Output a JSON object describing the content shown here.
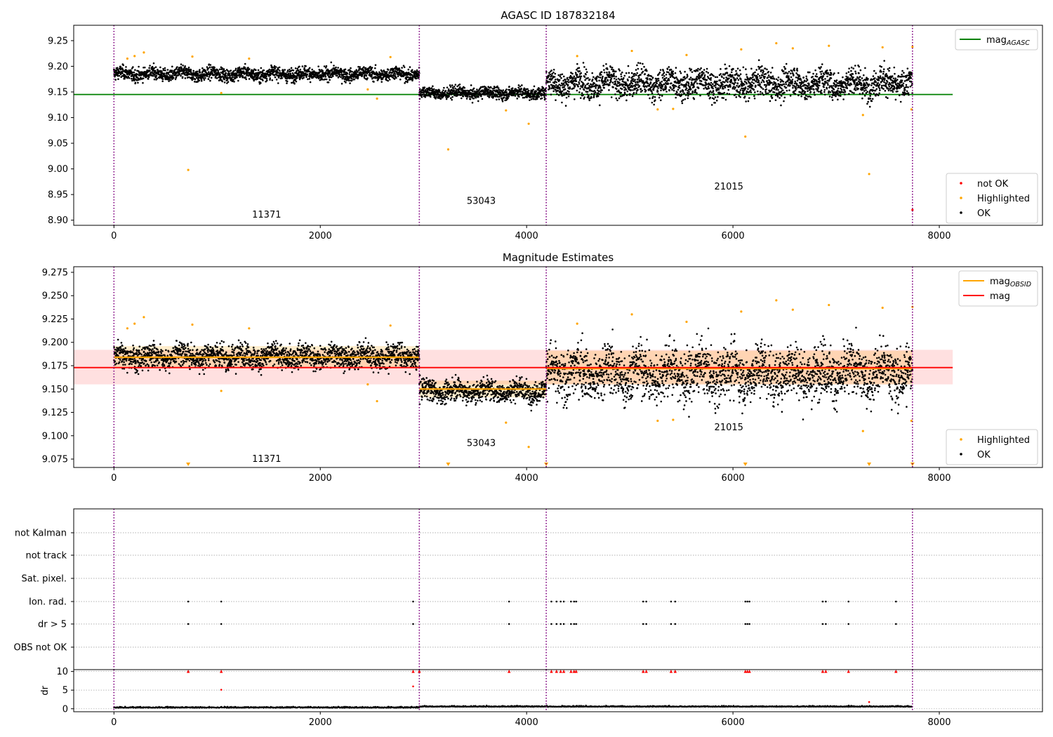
{
  "chart_data": [
    {
      "id": "agasc",
      "type": "scatter",
      "title": "AGASC ID 187832184",
      "xlim": [
        -390,
        9000
      ],
      "ylim": [
        8.89,
        9.28
      ],
      "xticks": [
        0,
        2000,
        4000,
        6000,
        8000
      ],
      "yticks": [
        8.9,
        8.95,
        9.0,
        9.05,
        9.1,
        9.15,
        9.2,
        9.25
      ],
      "ytick_labels": [
        "8.90",
        "8.95",
        "9.00",
        "9.05",
        "9.10",
        "9.15",
        "9.20",
        "9.25"
      ],
      "obs_boundaries": [
        0,
        2960,
        4190,
        7740
      ],
      "obs_labels": [
        {
          "text": "11371",
          "x": 1480,
          "y": 8.905
        },
        {
          "text": "53043",
          "x": 3560,
          "y": 8.932
        },
        {
          "text": "21015",
          "x": 5960,
          "y": 8.96
        }
      ],
      "reference_line": {
        "name": "mag_AGASC",
        "value": 9.145,
        "x_range": [
          -390,
          8130
        ],
        "color": "#008000"
      },
      "segments": [
        {
          "x": [
            0,
            2960
          ],
          "level": 9.185,
          "spread": 0.009
        },
        {
          "x": [
            2960,
            4190
          ],
          "level": 9.148,
          "spread": 0.008
        },
        {
          "x": [
            4190,
            7740
          ],
          "level": 9.167,
          "spread": 0.02
        }
      ],
      "highlighted_points": [
        {
          "x": 720,
          "y": 8.998
        },
        {
          "x": 1040,
          "y": 9.148
        },
        {
          "x": 2550,
          "y": 9.137
        },
        {
          "x": 3240,
          "y": 9.038
        },
        {
          "x": 3800,
          "y": 9.114
        },
        {
          "x": 4020,
          "y": 9.088
        },
        {
          "x": 5270,
          "y": 9.116
        },
        {
          "x": 5420,
          "y": 9.117
        },
        {
          "x": 6120,
          "y": 9.063
        },
        {
          "x": 7260,
          "y": 9.105
        },
        {
          "x": 7320,
          "y": 8.99
        },
        {
          "x": 7730,
          "y": 9.116
        },
        {
          "x": 130,
          "y": 9.215
        },
        {
          "x": 200,
          "y": 9.22
        },
        {
          "x": 290,
          "y": 9.227
        },
        {
          "x": 760,
          "y": 9.219
        },
        {
          "x": 1310,
          "y": 9.215
        },
        {
          "x": 2680,
          "y": 9.218
        },
        {
          "x": 2460,
          "y": 9.155
        },
        {
          "x": 5020,
          "y": 9.23
        },
        {
          "x": 6420,
          "y": 9.245
        },
        {
          "x": 6580,
          "y": 9.235
        },
        {
          "x": 6930,
          "y": 9.24
        },
        {
          "x": 7450,
          "y": 9.237
        },
        {
          "x": 7740,
          "y": 9.238
        },
        {
          "x": 4490,
          "y": 9.22
        },
        {
          "x": 5550,
          "y": 9.222
        },
        {
          "x": 6080,
          "y": 9.233
        }
      ],
      "not_ok_points": [
        {
          "x": 7740,
          "y": 8.92
        }
      ],
      "legends": [
        {
          "position": "upper-right",
          "entries": [
            {
              "label": "mag",
              "sub": "AGASC",
              "kind": "line",
              "color": "#008000"
            }
          ]
        },
        {
          "position": "lower-right",
          "entries": [
            {
              "label": "not OK",
              "kind": "point",
              "color": "#ff0000"
            },
            {
              "label": "Highlighted",
              "kind": "point",
              "color": "#ffa500"
            },
            {
              "label": "OK",
              "kind": "point",
              "color": "#000000"
            }
          ]
        }
      ]
    },
    {
      "id": "estimates",
      "type": "scatter",
      "title": "Magnitude Estimates",
      "xlim": [
        -390,
        9000
      ],
      "ylim": [
        9.066,
        9.281
      ],
      "xticks": [
        0,
        2000,
        4000,
        6000,
        8000
      ],
      "yticks": [
        9.075,
        9.1,
        9.125,
        9.15,
        9.175,
        9.2,
        9.225,
        9.25,
        9.275
      ],
      "ytick_labels": [
        "9.075",
        "9.100",
        "9.125",
        "9.150",
        "9.175",
        "9.200",
        "9.225",
        "9.250",
        "9.275"
      ],
      "obs_boundaries": [
        0,
        2960,
        4190,
        7740
      ],
      "obs_labels": [
        {
          "text": "11371",
          "x": 1480,
          "y": 9.072
        },
        {
          "text": "53043",
          "x": 3560,
          "y": 9.089
        },
        {
          "text": "21015",
          "x": 5960,
          "y": 9.106
        }
      ],
      "mag": {
        "value": 9.173,
        "band": [
          9.155,
          9.192
        ],
        "x_range": [
          -390,
          8130
        ],
        "color": "#ff0000"
      },
      "mag_obsid": [
        {
          "x": [
            0,
            2960
          ],
          "value": 9.184,
          "band": [
            9.173,
            9.196
          ]
        },
        {
          "x": [
            2960,
            4190
          ],
          "value": 9.15,
          "band": [
            9.141,
            9.159
          ]
        },
        {
          "x": [
            4190,
            7740
          ],
          "value": 9.172,
          "band": [
            9.155,
            9.191
          ]
        }
      ],
      "clipped_markers_x": [
        720,
        3240,
        4190,
        6120,
        7320,
        7740
      ],
      "legends": [
        {
          "position": "upper-right",
          "entries": [
            {
              "label": "mag",
              "sub": "OBSID",
              "kind": "line",
              "color": "#ffa500"
            },
            {
              "label": "mag",
              "kind": "line",
              "color": "#ff0000"
            }
          ]
        },
        {
          "position": "lower-right",
          "entries": [
            {
              "label": "Highlighted",
              "kind": "point",
              "color": "#ffa500"
            },
            {
              "label": "OK",
              "kind": "point",
              "color": "#000000"
            }
          ]
        }
      ]
    },
    {
      "id": "flags",
      "type": "scatter",
      "xlim": [
        -390,
        9000
      ],
      "xticks": [
        0,
        2000,
        4000,
        6000,
        8000
      ],
      "obs_boundaries": [
        0,
        2960,
        4190,
        7740
      ],
      "categories": [
        "not Kalman",
        "not track",
        "Sat. pixel.",
        "Ion. rad.",
        "dr > 5",
        "OBS not OK"
      ],
      "flag_x": [
        720,
        1040,
        2900,
        3830,
        4240,
        4290,
        4330,
        4360,
        4430,
        4460,
        4480,
        5130,
        5160,
        5400,
        5440,
        6120,
        6140,
        6160,
        6870,
        6900,
        7120,
        7580
      ],
      "flagged_rows": [
        "Ion. rad.",
        "dr > 5"
      ]
    },
    {
      "id": "dr",
      "type": "scatter",
      "ylabel": "dr",
      "xlim": [
        -390,
        9000
      ],
      "ylim": [
        -0.8,
        10.5
      ],
      "xticks": [
        0,
        2000,
        4000,
        6000,
        8000
      ],
      "yticks": [
        0,
        5,
        10
      ],
      "ytick_labels": [
        "0",
        "5",
        "10"
      ],
      "obs_boundaries": [
        0,
        2960,
        4190,
        7740
      ],
      "clipped_x": [
        720,
        1040,
        2900,
        2960,
        3830,
        4240,
        4290,
        4330,
        4360,
        4430,
        4460,
        4480,
        5130,
        5160,
        5400,
        5440,
        6120,
        6140,
        6160,
        6870,
        6900,
        7120,
        7580
      ],
      "extra_points": [
        {
          "x": 1040,
          "y": 5.1
        },
        {
          "x": 2900,
          "y": 6.0
        },
        {
          "x": 7320,
          "y": 1.8
        }
      ]
    }
  ]
}
